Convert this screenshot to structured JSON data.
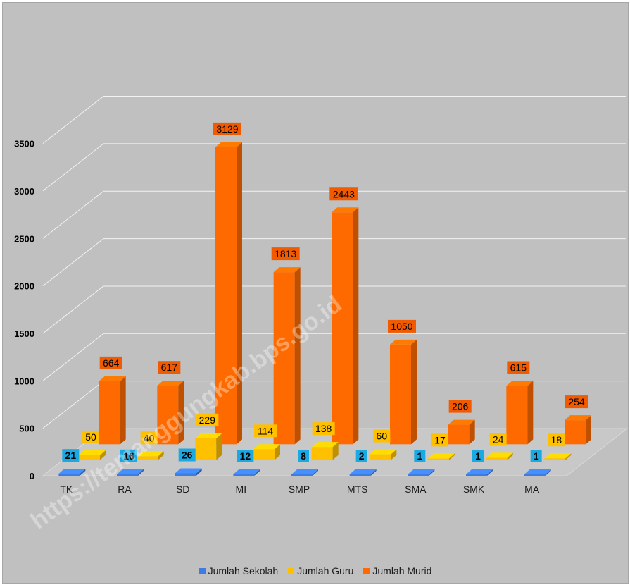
{
  "chart_data": {
    "type": "bar",
    "categories": [
      "TK",
      "RA",
      "SD",
      "MI",
      "SMP",
      "MTS",
      "SMA",
      "SMK",
      "MA"
    ],
    "series": [
      {
        "name": "Jumlah Sekolah",
        "values": [
          21,
          16,
          26,
          12,
          8,
          2,
          1,
          1,
          1
        ],
        "color": "#3d7ce0",
        "label_bg": "#1aa9e3"
      },
      {
        "name": "Jumlah Guru",
        "values": [
          50,
          40,
          229,
          114,
          138,
          60,
          17,
          24,
          18
        ],
        "color": "#ffc000",
        "label_bg": "#ffc000"
      },
      {
        "name": "Jumlah Murid",
        "values": [
          664,
          617,
          3129,
          1813,
          2443,
          1050,
          206,
          615,
          254
        ],
        "color": "#ff6a00",
        "label_bg": "#f05a00"
      }
    ],
    "y_ticks": [
      "0",
      "500",
      "1000",
      "1500",
      "2000",
      "2500",
      "3000",
      "3500"
    ],
    "ylim": [
      0,
      3500
    ],
    "grid": true,
    "legend_position": "bottom",
    "watermark": "https://temanggungkab.bps.go.id"
  }
}
